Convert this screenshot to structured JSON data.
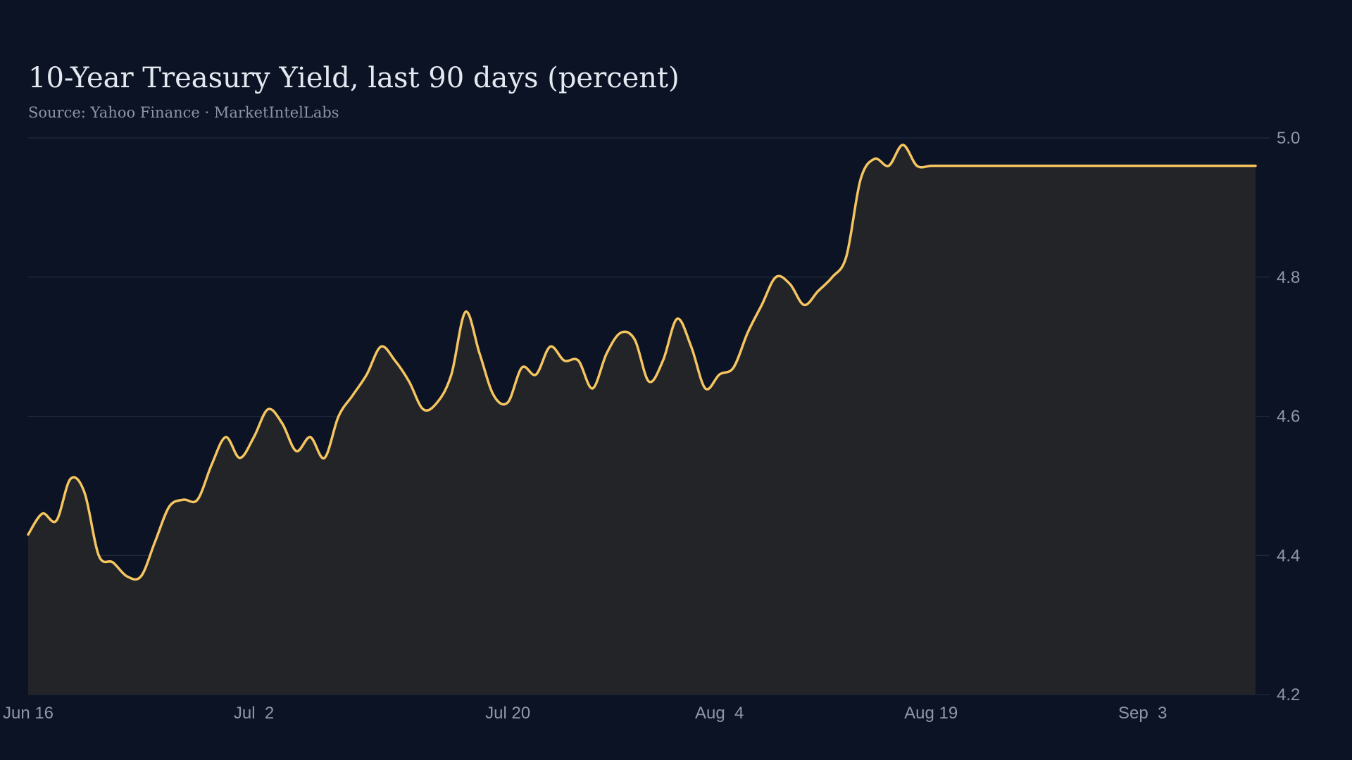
{
  "chart_data": {
    "type": "area",
    "title": "10-Year Treasury Yield, last 90 days (percent)",
    "subtitle": "Source: Yahoo Finance · MarketIntelLabs",
    "xlabel": "",
    "ylabel": "",
    "ylim": [
      4.2,
      5.0
    ],
    "y_ticks": [
      4.2,
      4.4,
      4.6,
      4.8,
      5.0
    ],
    "y_tick_labels": [
      "4.2",
      "4.4",
      "4.6",
      "4.8",
      "5.0"
    ],
    "x_ticks": [
      {
        "day": 0,
        "label": "Jun 16"
      },
      {
        "day": 16,
        "label": "Jul  2"
      },
      {
        "day": 34,
        "label": "Jul 20"
      },
      {
        "day": 49,
        "label": "Aug  4"
      },
      {
        "day": 64,
        "label": "Aug 19"
      },
      {
        "day": 79,
        "label": "Sep  3"
      }
    ],
    "x_start": "Jun 16",
    "grid": true,
    "y_axis_side": "right",
    "colors": {
      "line": "#f5c560",
      "area": "#222428",
      "grid": "#243042",
      "background": "#0c1324"
    },
    "series": [
      {
        "x": [
          0,
          1,
          2,
          3,
          4,
          5,
          6,
          7,
          8,
          9,
          10,
          11,
          12,
          13,
          14,
          15,
          16,
          17,
          18,
          19,
          20,
          21,
          22,
          23,
          24,
          25,
          26,
          27,
          28,
          29,
          30,
          31,
          32,
          33,
          34,
          35,
          36,
          37,
          38,
          39,
          40,
          41,
          42,
          43,
          44,
          45,
          46,
          47,
          48,
          49,
          50,
          51,
          52,
          53,
          54,
          55,
          56,
          57,
          58,
          59,
          60,
          61,
          62,
          63,
          64,
          65,
          66,
          67,
          68,
          69,
          70,
          71,
          72,
          73,
          74,
          75,
          76,
          77,
          78,
          79,
          80,
          81,
          82,
          83,
          84,
          85,
          86,
          87,
          88
        ],
        "values": [
          4.43,
          4.46,
          4.45,
          4.51,
          4.49,
          4.4,
          4.39,
          4.37,
          4.37,
          4.42,
          4.47,
          4.48,
          4.48,
          4.53,
          4.57,
          4.54,
          4.57,
          4.61,
          4.59,
          4.55,
          4.57,
          4.54,
          4.6,
          4.63,
          4.66,
          4.7,
          4.68,
          4.65,
          4.61,
          4.62,
          4.66,
          4.75,
          4.69,
          4.63,
          4.62,
          4.67,
          4.66,
          4.7,
          4.68,
          4.68,
          4.64,
          4.69,
          4.72,
          4.71,
          4.65,
          4.68,
          4.74,
          4.7,
          4.64,
          4.66,
          4.67,
          4.72,
          4.76,
          4.8,
          4.79,
          4.76,
          4.78,
          4.8,
          4.83,
          4.94,
          4.97,
          4.96,
          4.99,
          4.96,
          4.96,
          4.96,
          4.96,
          4.96,
          4.96,
          4.96,
          4.96,
          4.96,
          4.96,
          4.96,
          4.96,
          4.96,
          4.96,
          4.96,
          4.96,
          4.96,
          4.96,
          4.96,
          4.96,
          4.96,
          4.96,
          4.96,
          4.96,
          4.96,
          4.96
        ]
      }
    ]
  }
}
